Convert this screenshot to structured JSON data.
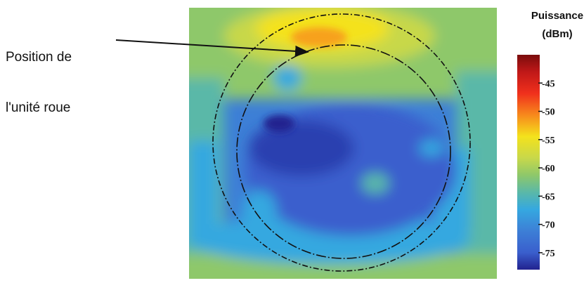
{
  "annotation": {
    "line1": "Position de",
    "line2": "l'unité roue"
  },
  "chart_data": {
    "type": "heatmap",
    "legend": {
      "title_line1": "Puissance",
      "title_line2": "(dBm)"
    },
    "colorbar": {
      "ticks": [
        -45,
        -50,
        -55,
        -60,
        -65,
        -70,
        -75
      ],
      "range": [
        -78,
        -40
      ]
    },
    "circles": [
      "outer-ring",
      "inner-ring"
    ],
    "hotspot_value": -50,
    "coldspot_value": -75,
    "colors": {
      "dark_blue": "#22228f",
      "blue": "#3a5fcd",
      "mid_blue": "#3d7fd6",
      "light_blue": "#35a8e0",
      "cyan_green": "#5ab8a8",
      "green": "#8ec86a",
      "yellow_green": "#c8d84a",
      "yellow": "#f4e21c",
      "orange": "#f7a11c",
      "red": "#e8261c",
      "dark_red": "#8a1010"
    }
  }
}
